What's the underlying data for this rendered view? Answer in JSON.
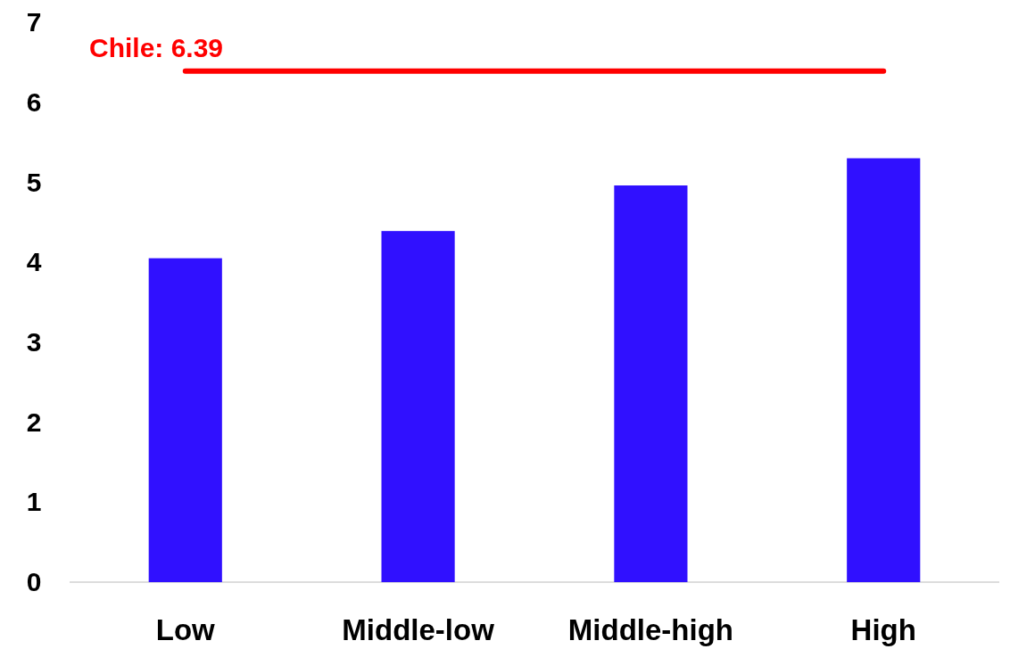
{
  "chart_data": {
    "type": "bar",
    "categories": [
      "Low",
      "Middle-low",
      "Middle-high",
      "High"
    ],
    "values": [
      4.05,
      4.39,
      4.96,
      5.3
    ],
    "color": "#3010ff",
    "ylim": [
      0,
      7
    ],
    "yticks": [
      0,
      1,
      2,
      3,
      4,
      5,
      6,
      7
    ],
    "ref_lines": [
      {
        "axis": "y",
        "value": 6.39,
        "label": "Chile: 6.39",
        "color": "#ff0000"
      }
    ]
  }
}
